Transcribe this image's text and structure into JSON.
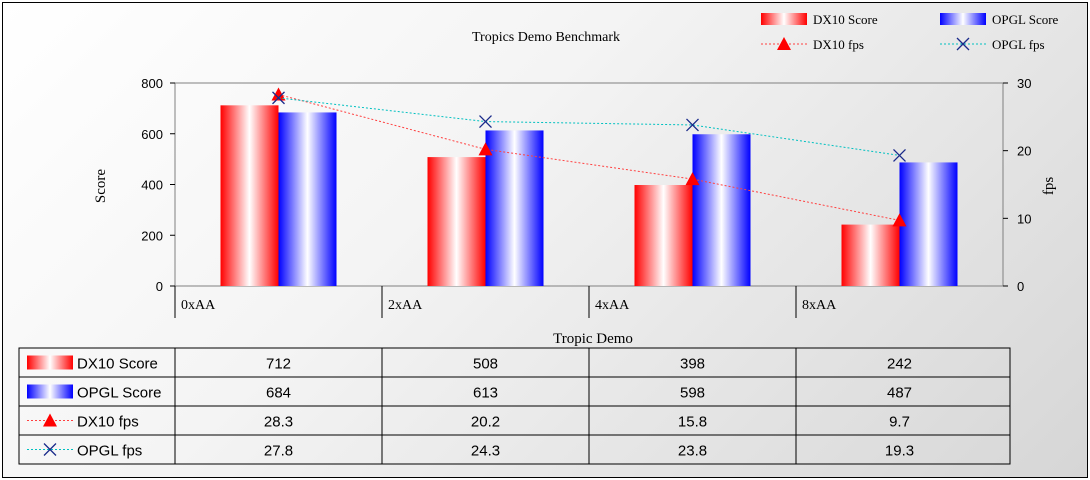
{
  "chart_data": {
    "type": "bar",
    "title": "Tropics Demo Benchmark",
    "xlabel": "Tropic Demo",
    "ylabel": "Score",
    "y2label": "fps",
    "categories": [
      "0xAA",
      "2xAA",
      "4xAA",
      "8xAA"
    ],
    "ylim": [
      0,
      800
    ],
    "y2lim": [
      0,
      30
    ],
    "yticks": [
      0,
      200,
      400,
      600,
      800
    ],
    "y2ticks": [
      0,
      10,
      20,
      30
    ],
    "legend_position": "top-right",
    "series": [
      {
        "name": "DX10 Score",
        "kind": "bar",
        "axis": "left",
        "color": "#ff0000",
        "values": [
          712,
          508,
          398,
          242
        ],
        "labels": [
          "712",
          "508",
          "398",
          "242"
        ]
      },
      {
        "name": "OPGL Score",
        "kind": "bar",
        "axis": "left",
        "color": "#0000ff",
        "values": [
          684,
          613,
          598,
          487
        ],
        "labels": [
          "684",
          "613",
          "598",
          "487"
        ]
      },
      {
        "name": "DX10 fps",
        "kind": "line",
        "marker": "triangle",
        "axis": "right",
        "color": "#ff4040",
        "values": [
          28.3,
          20.2,
          15.8,
          9.7
        ],
        "labels": [
          "28.3",
          "20.2",
          "15.8",
          "9.7"
        ]
      },
      {
        "name": "OPGL fps",
        "kind": "line",
        "marker": "x",
        "axis": "right",
        "color": "#00c0c0",
        "values": [
          27.8,
          24.3,
          23.8,
          19.3
        ],
        "labels": [
          "27.8",
          "24.3",
          "23.8",
          "19.3"
        ]
      }
    ]
  }
}
